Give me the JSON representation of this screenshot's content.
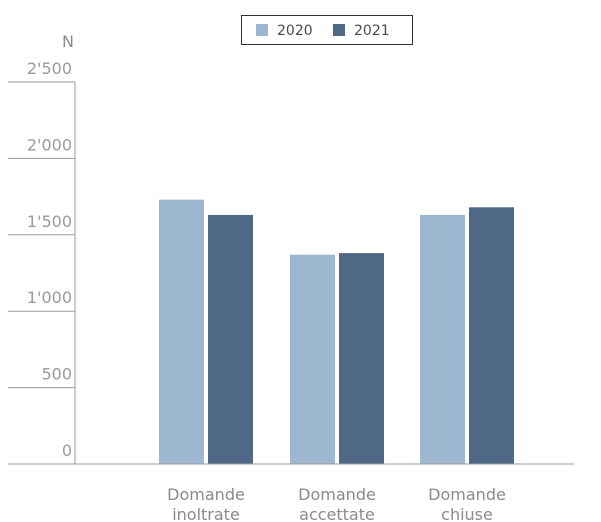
{
  "chart_data": {
    "type": "bar",
    "ylabel": "N",
    "ylim": [
      0,
      2500
    ],
    "yticks": [
      0,
      500,
      1000,
      1500,
      2000,
      2500
    ],
    "ytick_labels": [
      "0",
      "500",
      "1'000",
      "1'500",
      "2'000",
      "2'500"
    ],
    "categories": [
      [
        "Domande",
        "inoltrate"
      ],
      [
        "Domande",
        "accettate"
      ],
      [
        "Domande",
        "chiuse"
      ]
    ],
    "series": [
      {
        "name": "2020",
        "color": "#9cb7cf",
        "values": [
          1730,
          1370,
          1630
        ]
      },
      {
        "name": "2021",
        "color": "#4e6885",
        "values": [
          1630,
          1380,
          1680
        ]
      }
    ],
    "legend_position": "top"
  }
}
